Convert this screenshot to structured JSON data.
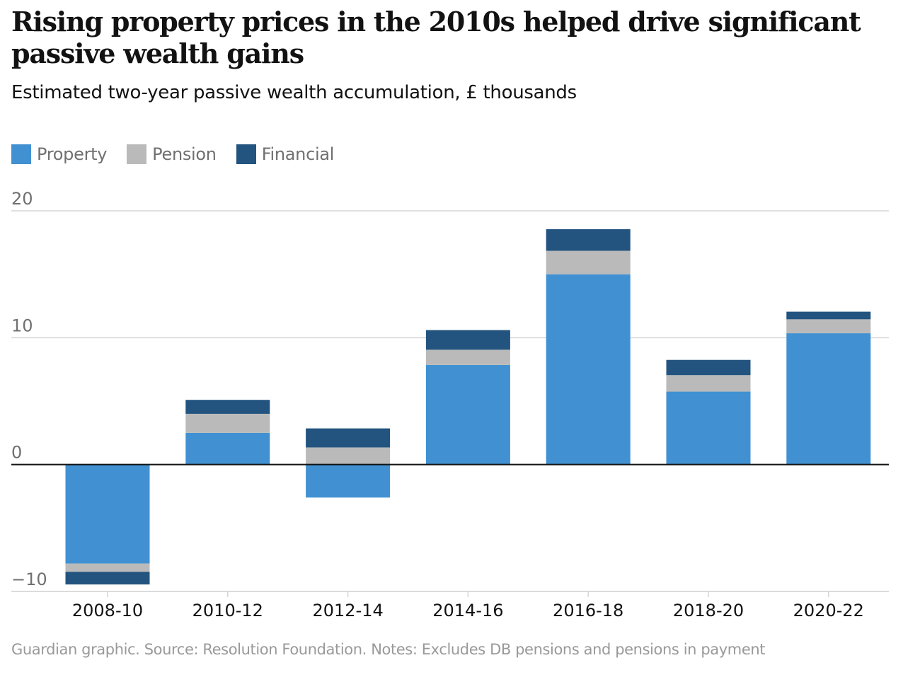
{
  "header": {
    "title": "Rising property prices in the 2010s helped drive significant passive wealth gains",
    "subtitle": "Estimated two-year passive wealth accumulation, £ thousands"
  },
  "legend": [
    {
      "name": "Property",
      "color": "#4191d2"
    },
    {
      "name": "Pension",
      "color": "#bababa"
    },
    {
      "name": "Financial",
      "color": "#23547f"
    }
  ],
  "footer": {
    "source": "Guardian graphic. Source: Resolution Foundation. Notes: Excludes DB pensions and pensions in payment"
  },
  "chart_data": {
    "type": "bar",
    "stacked": true,
    "title": "Rising property prices in the 2010s helped drive significant passive wealth gains",
    "subtitle": "Estimated two-year passive wealth accumulation, £ thousands",
    "xlabel": "",
    "ylabel": "£ thousands",
    "ylim": [
      -10,
      20
    ],
    "yticks": [
      20,
      10,
      0,
      -10
    ],
    "ytick_labels": [
      "20",
      "10",
      "0",
      "−10"
    ],
    "grid": true,
    "legend_position": "top-left",
    "categories": [
      "2008-10",
      "2010-12",
      "2012-14",
      "2014-16",
      "2016-18",
      "2018-20",
      "2020-22"
    ],
    "series": [
      {
        "name": "Property",
        "color": "#4191d2",
        "values": [
          -7.8,
          2.5,
          -2.6,
          7.85,
          15.0,
          5.75,
          10.35
        ]
      },
      {
        "name": "Pension",
        "color": "#bababa",
        "values": [
          -0.65,
          1.5,
          1.35,
          1.2,
          1.85,
          1.3,
          1.1
        ]
      },
      {
        "name": "Financial",
        "color": "#23547f",
        "values": [
          -1.0,
          1.1,
          1.5,
          1.55,
          1.7,
          1.2,
          0.6
        ]
      }
    ],
    "source": "Guardian graphic. Source: Resolution Foundation. Notes: Excludes DB pensions and pensions in payment"
  }
}
